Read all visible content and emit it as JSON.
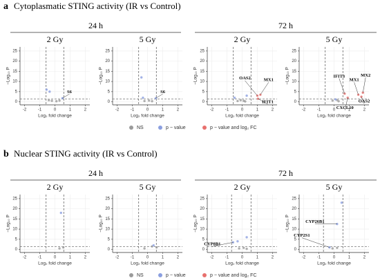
{
  "sections": [
    {
      "letter": "a",
      "title": "Cytoplasmatic STING activity (IR vs Control)",
      "groups": [
        "24 h",
        "72 h"
      ]
    },
    {
      "letter": "b",
      "title": "Nuclear STING activity (IR vs Control)",
      "groups": [
        "24 h",
        "72 h"
      ]
    }
  ],
  "chart_data": [
    {
      "type": "scatter",
      "title": "2 Gy",
      "xlabel": "Log₂ fold change",
      "ylabel": "−Log₁₀ P",
      "xlim": [
        -2.3,
        2.3
      ],
      "ylim": [
        -1.5,
        27
      ],
      "xticks": [
        -2,
        -1,
        0,
        1,
        2
      ],
      "yticks": [
        0,
        5,
        10,
        15,
        20,
        25
      ],
      "grid": true,
      "vlines": [
        -0.58,
        0.58
      ],
      "hline": 1.3,
      "series": [
        {
          "name": "NS",
          "color": "#9a9a9a",
          "x": [
            -0.2,
            0.1,
            -0.4,
            0.3
          ],
          "values": [
            0.5,
            0.3,
            0.8,
            0.6
          ]
        },
        {
          "name": "p − value",
          "color": "#8b9fe0",
          "x": [
            -0.55,
            -0.35,
            0.5
          ],
          "values": [
            6,
            5,
            1.8
          ],
          "labels": [
            null,
            null,
            "S6"
          ]
        },
        {
          "name": "p − value and log₂ FC",
          "color": "#e8706e",
          "x": [],
          "values": []
        }
      ]
    },
    {
      "type": "scatter",
      "title": "5 Gy",
      "xlabel": "Log₂ fold change",
      "ylabel": "−Log₁₀ P",
      "xlim": [
        -2.3,
        2.3
      ],
      "ylim": [
        -1.5,
        27
      ],
      "xticks": [
        -2,
        -1,
        0,
        1,
        2
      ],
      "yticks": [
        0,
        5,
        10,
        15,
        20,
        25
      ],
      "grid": true,
      "vlines": [
        -0.58,
        0.58
      ],
      "hline": 1.3,
      "series": [
        {
          "name": "NS",
          "color": "#9a9a9a",
          "x": [
            -0.2,
            0.1,
            0.3
          ],
          "values": [
            0.4,
            0.6,
            0.3
          ]
        },
        {
          "name": "p − value",
          "color": "#8b9fe0",
          "x": [
            -0.4,
            -0.3,
            0.55
          ],
          "values": [
            12,
            2,
            1.8
          ],
          "labels": [
            null,
            null,
            "S6"
          ]
        },
        {
          "name": "p − value and log₂ FC",
          "color": "#e8706e",
          "x": [],
          "values": []
        }
      ]
    },
    {
      "type": "scatter",
      "title": "2 Gy",
      "xlabel": "Log₂ fold change",
      "ylabel": "−Log₁₀ P",
      "xlim": [
        -2.3,
        2.3
      ],
      "ylim": [
        -1.5,
        27
      ],
      "xticks": [
        -2,
        -1,
        0,
        1,
        2
      ],
      "yticks": [
        0,
        5,
        10,
        15,
        20,
        25
      ],
      "grid": true,
      "vlines": [
        -0.58,
        0.58
      ],
      "hline": 1.3,
      "series": [
        {
          "name": "NS",
          "color": "#9a9a9a",
          "x": [
            -0.3,
            0.1,
            0.2,
            -0.1
          ],
          "values": [
            0.4,
            0.5,
            0.2,
            0.8
          ]
        },
        {
          "name": "p − value",
          "color": "#8b9fe0",
          "x": [
            -0.5,
            0.3
          ],
          "values": [
            2,
            3
          ],
          "labels": [
            null,
            null
          ]
        },
        {
          "name": "p − value and log₂ FC",
          "color": "#e8706e",
          "x": [
            1.0,
            1.2,
            1.05
          ],
          "values": [
            3,
            3.5,
            1.5
          ],
          "labels": [
            "OAS2",
            "MX1",
            "IFIT1"
          ]
        }
      ]
    },
    {
      "type": "scatter",
      "title": "5 Gy",
      "xlabel": "Log₂ fold change",
      "ylabel": "−Log₁₀ P",
      "xlim": [
        -2.3,
        2.3
      ],
      "ylim": [
        -1.5,
        27
      ],
      "xticks": [
        -2,
        -1,
        0,
        1,
        2
      ],
      "yticks": [
        0,
        5,
        10,
        15,
        20,
        25
      ],
      "grid": true,
      "vlines": [
        -0.58,
        0.58
      ],
      "hline": 1.3,
      "series": [
        {
          "name": "NS",
          "color": "#9a9a9a",
          "x": [
            -0.1,
            0.2,
            0.3
          ],
          "values": [
            0.6,
            0.9,
            0.3
          ]
        },
        {
          "name": "p − value",
          "color": "#8b9fe0",
          "x": [
            0.1
          ],
          "values": [
            1.2
          ]
        },
        {
          "name": "p − value and log₂ FC",
          "color": "#e8706e",
          "x": [
            0.7,
            1.6,
            1.9,
            1.8,
            0.9
          ],
          "values": [
            4,
            3.5,
            4.5,
            2.5,
            2
          ],
          "labels": [
            "IFIT3",
            "MX1",
            "MX2",
            "OAS2",
            "CXCL10"
          ]
        }
      ]
    },
    {
      "type": "scatter",
      "title": "2 Gy",
      "xlabel": "Log₂ fold change",
      "ylabel": "−Log₁₀ P",
      "xlim": [
        -2.3,
        2.3
      ],
      "ylim": [
        -1.5,
        27
      ],
      "xticks": [
        -2,
        -1,
        0,
        1,
        2
      ],
      "yticks": [
        0,
        5,
        10,
        15,
        20,
        25
      ],
      "grid": true,
      "vlines": [
        -0.58,
        0.58
      ],
      "hline": 1.3,
      "series": [
        {
          "name": "NS",
          "color": "#9a9a9a",
          "x": [
            0.55,
            0.3
          ],
          "values": [
            1,
            0.5
          ]
        },
        {
          "name": "p − value",
          "color": "#8b9fe0",
          "x": [
            0.4
          ],
          "values": [
            18
          ]
        },
        {
          "name": "p − value and log₂ FC",
          "color": "#e8706e",
          "x": [],
          "values": []
        }
      ]
    },
    {
      "type": "scatter",
      "title": "5 Gy",
      "xlabel": "Log₂ fold change",
      "ylabel": "−Log₁₀ P",
      "xlim": [
        -2.3,
        2.3
      ],
      "ylim": [
        -1.5,
        27
      ],
      "xticks": [
        -2,
        -1,
        0,
        1,
        2
      ],
      "yticks": [
        0,
        5,
        10,
        15,
        20,
        25
      ],
      "grid": true,
      "vlines": [
        -0.58,
        0.58
      ],
      "hline": 1.3,
      "series": [
        {
          "name": "NS",
          "color": "#9a9a9a",
          "x": [
            0.3,
            0.6,
            -0.2
          ],
          "values": [
            1.5,
            1,
            0.5
          ]
        },
        {
          "name": "p − value",
          "color": "#8b9fe0",
          "x": [
            0.4
          ],
          "values": [
            2
          ]
        },
        {
          "name": "p − value and log₂ FC",
          "color": "#e8706e",
          "x": [],
          "values": []
        }
      ]
    },
    {
      "type": "scatter",
      "title": "2 Gy",
      "xlabel": "Log₂ fold change",
      "ylabel": "−Log₁₀ P",
      "xlim": [
        -2.3,
        2.3
      ],
      "ylim": [
        -1.5,
        27
      ],
      "xticks": [
        -2,
        -1,
        0,
        1,
        2
      ],
      "yticks": [
        0,
        5,
        10,
        15,
        20,
        25
      ],
      "grid": true,
      "vlines": [
        -0.7,
        0.58
      ],
      "hline": 1.3,
      "series": [
        {
          "name": "NS",
          "color": "#9a9a9a",
          "x": [
            -0.2,
            0.1,
            0.3
          ],
          "values": [
            0.5,
            0.8,
            0.3
          ]
        },
        {
          "name": "p − value",
          "color": "#8b9fe0",
          "x": [
            -0.6,
            -0.3,
            0.3
          ],
          "values": [
            3.5,
            4,
            6
          ],
          "labels": [
            "CYP8B1",
            null,
            null
          ]
        },
        {
          "name": "p − value and log₂ FC",
          "color": "#e8706e",
          "x": [],
          "values": []
        }
      ]
    },
    {
      "type": "scatter",
      "title": "5 Gy",
      "xlabel": "Log₂ fold change",
      "ylabel": "−Log₁₀ P",
      "xlim": [
        -2.3,
        2.3
      ],
      "ylim": [
        -1.5,
        27
      ],
      "xticks": [
        -2,
        -1,
        0,
        1,
        2
      ],
      "yticks": [
        0,
        5,
        10,
        15,
        20,
        25
      ],
      "grid": true,
      "vlines": [
        -0.7,
        0.58
      ],
      "hline": 1.3,
      "series": [
        {
          "name": "NS",
          "color": "#9a9a9a",
          "x": [
            -0.1,
            0.2
          ],
          "values": [
            0.5,
            0.8
          ]
        },
        {
          "name": "p − value",
          "color": "#8b9fe0",
          "x": [
            0.5,
            0.2,
            -0.3
          ],
          "values": [
            23,
            12.5,
            1
          ],
          "labels": [
            null,
            "CYP26B1",
            "CYP2S1"
          ]
        },
        {
          "name": "p − value and log₂ FC",
          "color": "#e8706e",
          "x": [],
          "values": []
        }
      ]
    }
  ]
}
